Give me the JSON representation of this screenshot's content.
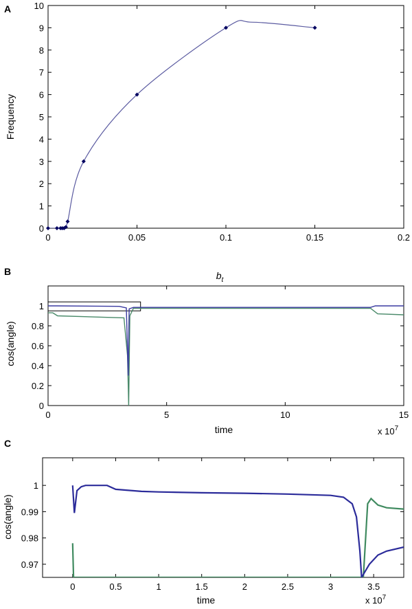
{
  "chart_data": [
    {
      "panel_label": "A",
      "type": "line",
      "ylabel": "Frequency",
      "xlabel_base": "b",
      "xlabel_sub": "t",
      "xlim": [
        0,
        0.2
      ],
      "ylim": [
        0,
        10
      ],
      "xticks": [
        "0",
        "0.05",
        "0.1",
        "0.15",
        "0.2"
      ],
      "yticks": [
        "0",
        "1",
        "2",
        "3",
        "4",
        "5",
        "6",
        "7",
        "8",
        "9",
        "10"
      ],
      "series": [
        {
          "color": "#5a5aa0",
          "points": [
            [
              0,
              0
            ],
            [
              0.005,
              0
            ],
            [
              0.007,
              0
            ],
            [
              0.008,
              0
            ],
            [
              0.009,
              0
            ],
            [
              0.01,
              0.05
            ],
            [
              0.011,
              0.3
            ],
            [
              0.02,
              3
            ],
            [
              0.05,
              6
            ],
            [
              0.1,
              9
            ],
            [
              0.15,
              9
            ]
          ]
        }
      ],
      "curve_peak": [
        0.115,
        9.25
      ]
    },
    {
      "panel_label": "B",
      "type": "line",
      "ylabel": "cos(angle)",
      "xlabel": "time",
      "x_multiplier": "x 10",
      "x_multiplier_exp": "7",
      "xlim": [
        0,
        15
      ],
      "ylim": [
        0,
        1.2
      ],
      "xticks": [
        "0",
        "5",
        "10",
        "15"
      ],
      "yticks": [
        "0",
        "0.2",
        "0.4",
        "0.6",
        "0.8",
        "1"
      ],
      "inset_box": {
        "x": [
          0,
          3.9
        ],
        "y": [
          0.95,
          1.04
        ]
      },
      "series": [
        {
          "color": "#3a3aa0",
          "points": [
            [
              0,
              1.0
            ],
            [
              0.4,
              1.0
            ],
            [
              3.0,
              0.995
            ],
            [
              3.3,
              0.98
            ],
            [
              3.38,
              0.3
            ],
            [
              3.42,
              0.97
            ],
            [
              3.6,
              0.985
            ],
            [
              13.6,
              0.985
            ],
            [
              13.8,
              1.0
            ],
            [
              15,
              1.0
            ]
          ]
        },
        {
          "color": "#4a8a6a",
          "points": [
            [
              0,
              0.93
            ],
            [
              0.2,
              0.93
            ],
            [
              0.4,
              0.9
            ],
            [
              3.2,
              0.88
            ],
            [
              3.35,
              0.5
            ],
            [
              3.4,
              0.0
            ],
            [
              3.45,
              0.9
            ],
            [
              3.6,
              0.975
            ],
            [
              13.6,
              0.975
            ],
            [
              13.9,
              0.92
            ],
            [
              15,
              0.91
            ]
          ]
        }
      ]
    },
    {
      "panel_label": "C",
      "type": "line",
      "ylabel": "cos(angle)",
      "xlabel": "time",
      "x_multiplier": "x 10",
      "x_multiplier_exp": "7",
      "xlim": [
        -0.35,
        3.85
      ],
      "ylim": [
        0.965,
        1.0105
      ],
      "xticks": [
        "0",
        "0.5",
        "1",
        "1.5",
        "2",
        "2.5",
        "3",
        "3.5"
      ],
      "yticks": [
        "0.97",
        "0.98",
        "0.99",
        "1"
      ],
      "series": [
        {
          "color": "#2b2b9a",
          "points": [
            [
              0,
              1.0
            ],
            [
              0.02,
              0.9895
            ],
            [
              0.05,
              0.998
            ],
            [
              0.1,
              0.9995
            ],
            [
              0.15,
              1.0
            ],
            [
              0.4,
              1.0
            ],
            [
              0.5,
              0.9985
            ],
            [
              0.8,
              0.9977
            ],
            [
              1.0,
              0.9975
            ],
            [
              1.5,
              0.9972
            ],
            [
              2.0,
              0.997
            ],
            [
              2.5,
              0.9967
            ],
            [
              3.0,
              0.9962
            ],
            [
              3.15,
              0.9955
            ],
            [
              3.25,
              0.993
            ],
            [
              3.3,
              0.988
            ],
            [
              3.34,
              0.975
            ],
            [
              3.36,
              0.965
            ],
            [
              3.45,
              0.97
            ],
            [
              3.55,
              0.9735
            ],
            [
              3.65,
              0.975
            ],
            [
              3.85,
              0.9765
            ]
          ]
        },
        {
          "color": "#3f8a5f",
          "points": [
            [
              0,
              0.978
            ],
            [
              0.01,
              0.965
            ],
            [
              3.38,
              0.965
            ],
            [
              3.43,
              0.993
            ],
            [
              3.47,
              0.995
            ],
            [
              3.55,
              0.9925
            ],
            [
              3.65,
              0.9915
            ],
            [
              3.85,
              0.991
            ]
          ]
        }
      ]
    }
  ]
}
